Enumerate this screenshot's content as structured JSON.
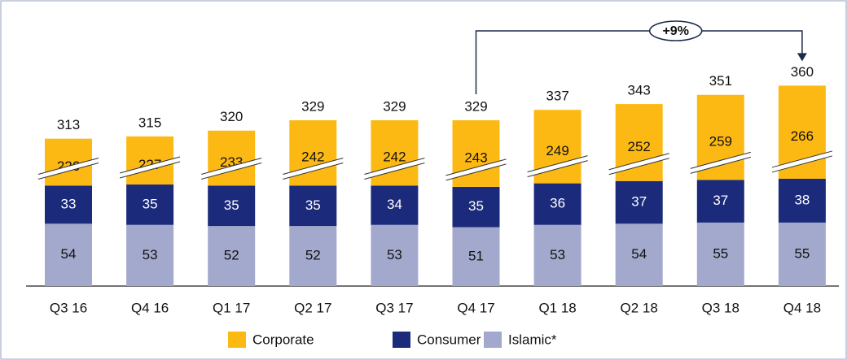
{
  "chart_data": {
    "type": "stacked_bar",
    "categories": [
      "Q3 16",
      "Q4 16",
      "Q1 17",
      "Q2 17",
      "Q3 17",
      "Q4 17",
      "Q1 18",
      "Q2 18",
      "Q3 18",
      "Q4 18"
    ],
    "series": [
      {
        "name": "Islamic*",
        "color": "#a3a9cc",
        "values": [
          54,
          53,
          52,
          52,
          53,
          51,
          53,
          54,
          55,
          55
        ]
      },
      {
        "name": "Consumer",
        "color": "#1b2a7a",
        "values": [
          33,
          35,
          35,
          35,
          34,
          35,
          36,
          37,
          37,
          38
        ]
      },
      {
        "name": "Corporate",
        "color": "#fdb913",
        "values": [
          226,
          227,
          233,
          242,
          242,
          243,
          249,
          252,
          259,
          266
        ]
      }
    ],
    "totals": [
      313,
      315,
      320,
      329,
      329,
      329,
      337,
      343,
      351,
      360
    ],
    "annotation": "+9%",
    "legend_order": [
      "Corporate",
      "Consumer",
      "Islamic*"
    ]
  }
}
